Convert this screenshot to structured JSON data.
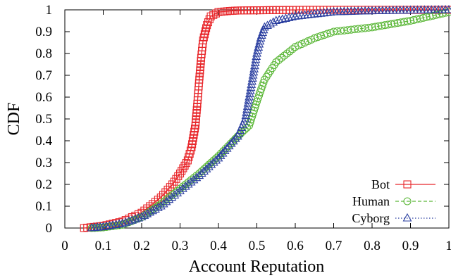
{
  "chart_data": {
    "type": "line",
    "title": "",
    "xlabel": "Account Reputation",
    "ylabel": "CDF",
    "xlim": [
      0,
      1
    ],
    "ylim": [
      0,
      1
    ],
    "xticks": [
      "0",
      "0.1",
      "0.2",
      "0.3",
      "0.4",
      "0.5",
      "0.6",
      "0.7",
      "0.8",
      "0.9",
      "1"
    ],
    "yticks": [
      "0",
      "0.1",
      "0.2",
      "0.3",
      "0.4",
      "0.5",
      "0.6",
      "0.7",
      "0.8",
      "0.9",
      "1"
    ],
    "grid": false,
    "legend_position": "bottom-right",
    "series": [
      {
        "name": "Bot",
        "color": "#e8262a",
        "marker": "square",
        "line_style": "solid",
        "x": [
          0.05,
          0.1,
          0.15,
          0.2,
          0.25,
          0.28,
          0.3,
          0.32,
          0.33,
          0.34,
          0.345,
          0.35,
          0.355,
          0.36,
          0.37,
          0.38,
          0.4,
          0.43,
          0.45,
          0.5,
          0.55,
          0.62,
          0.7,
          1.0
        ],
        "y": [
          0.0,
          0.01,
          0.03,
          0.07,
          0.14,
          0.2,
          0.25,
          0.31,
          0.37,
          0.47,
          0.57,
          0.68,
          0.78,
          0.86,
          0.93,
          0.97,
          0.99,
          0.995,
          0.997,
          0.998,
          0.999,
          1.0,
          1.0,
          1.0
        ]
      },
      {
        "name": "Human",
        "color": "#5db83a",
        "marker": "circle",
        "line_style": "dashed",
        "x": [
          0.07,
          0.1,
          0.15,
          0.2,
          0.25,
          0.3,
          0.35,
          0.4,
          0.45,
          0.48,
          0.5,
          0.52,
          0.55,
          0.6,
          0.65,
          0.7,
          0.8,
          0.9,
          1.0
        ],
        "y": [
          0.0,
          0.003,
          0.015,
          0.05,
          0.11,
          0.18,
          0.25,
          0.33,
          0.42,
          0.47,
          0.58,
          0.68,
          0.76,
          0.83,
          0.87,
          0.9,
          0.92,
          0.95,
          0.99
        ]
      },
      {
        "name": "Cyborg",
        "color": "#2b3fa0",
        "marker": "triangle",
        "line_style": "dotted",
        "x": [
          0.07,
          0.1,
          0.15,
          0.2,
          0.25,
          0.3,
          0.35,
          0.4,
          0.45,
          0.47,
          0.48,
          0.49,
          0.5,
          0.51,
          0.52,
          0.55,
          0.6,
          0.65,
          0.7,
          0.8,
          0.9,
          1.0
        ],
        "y": [
          0.0,
          0.005,
          0.02,
          0.05,
          0.1,
          0.17,
          0.24,
          0.32,
          0.42,
          0.5,
          0.6,
          0.7,
          0.8,
          0.87,
          0.92,
          0.95,
          0.97,
          0.98,
          0.99,
          0.995,
          0.998,
          1.0
        ]
      }
    ]
  }
}
